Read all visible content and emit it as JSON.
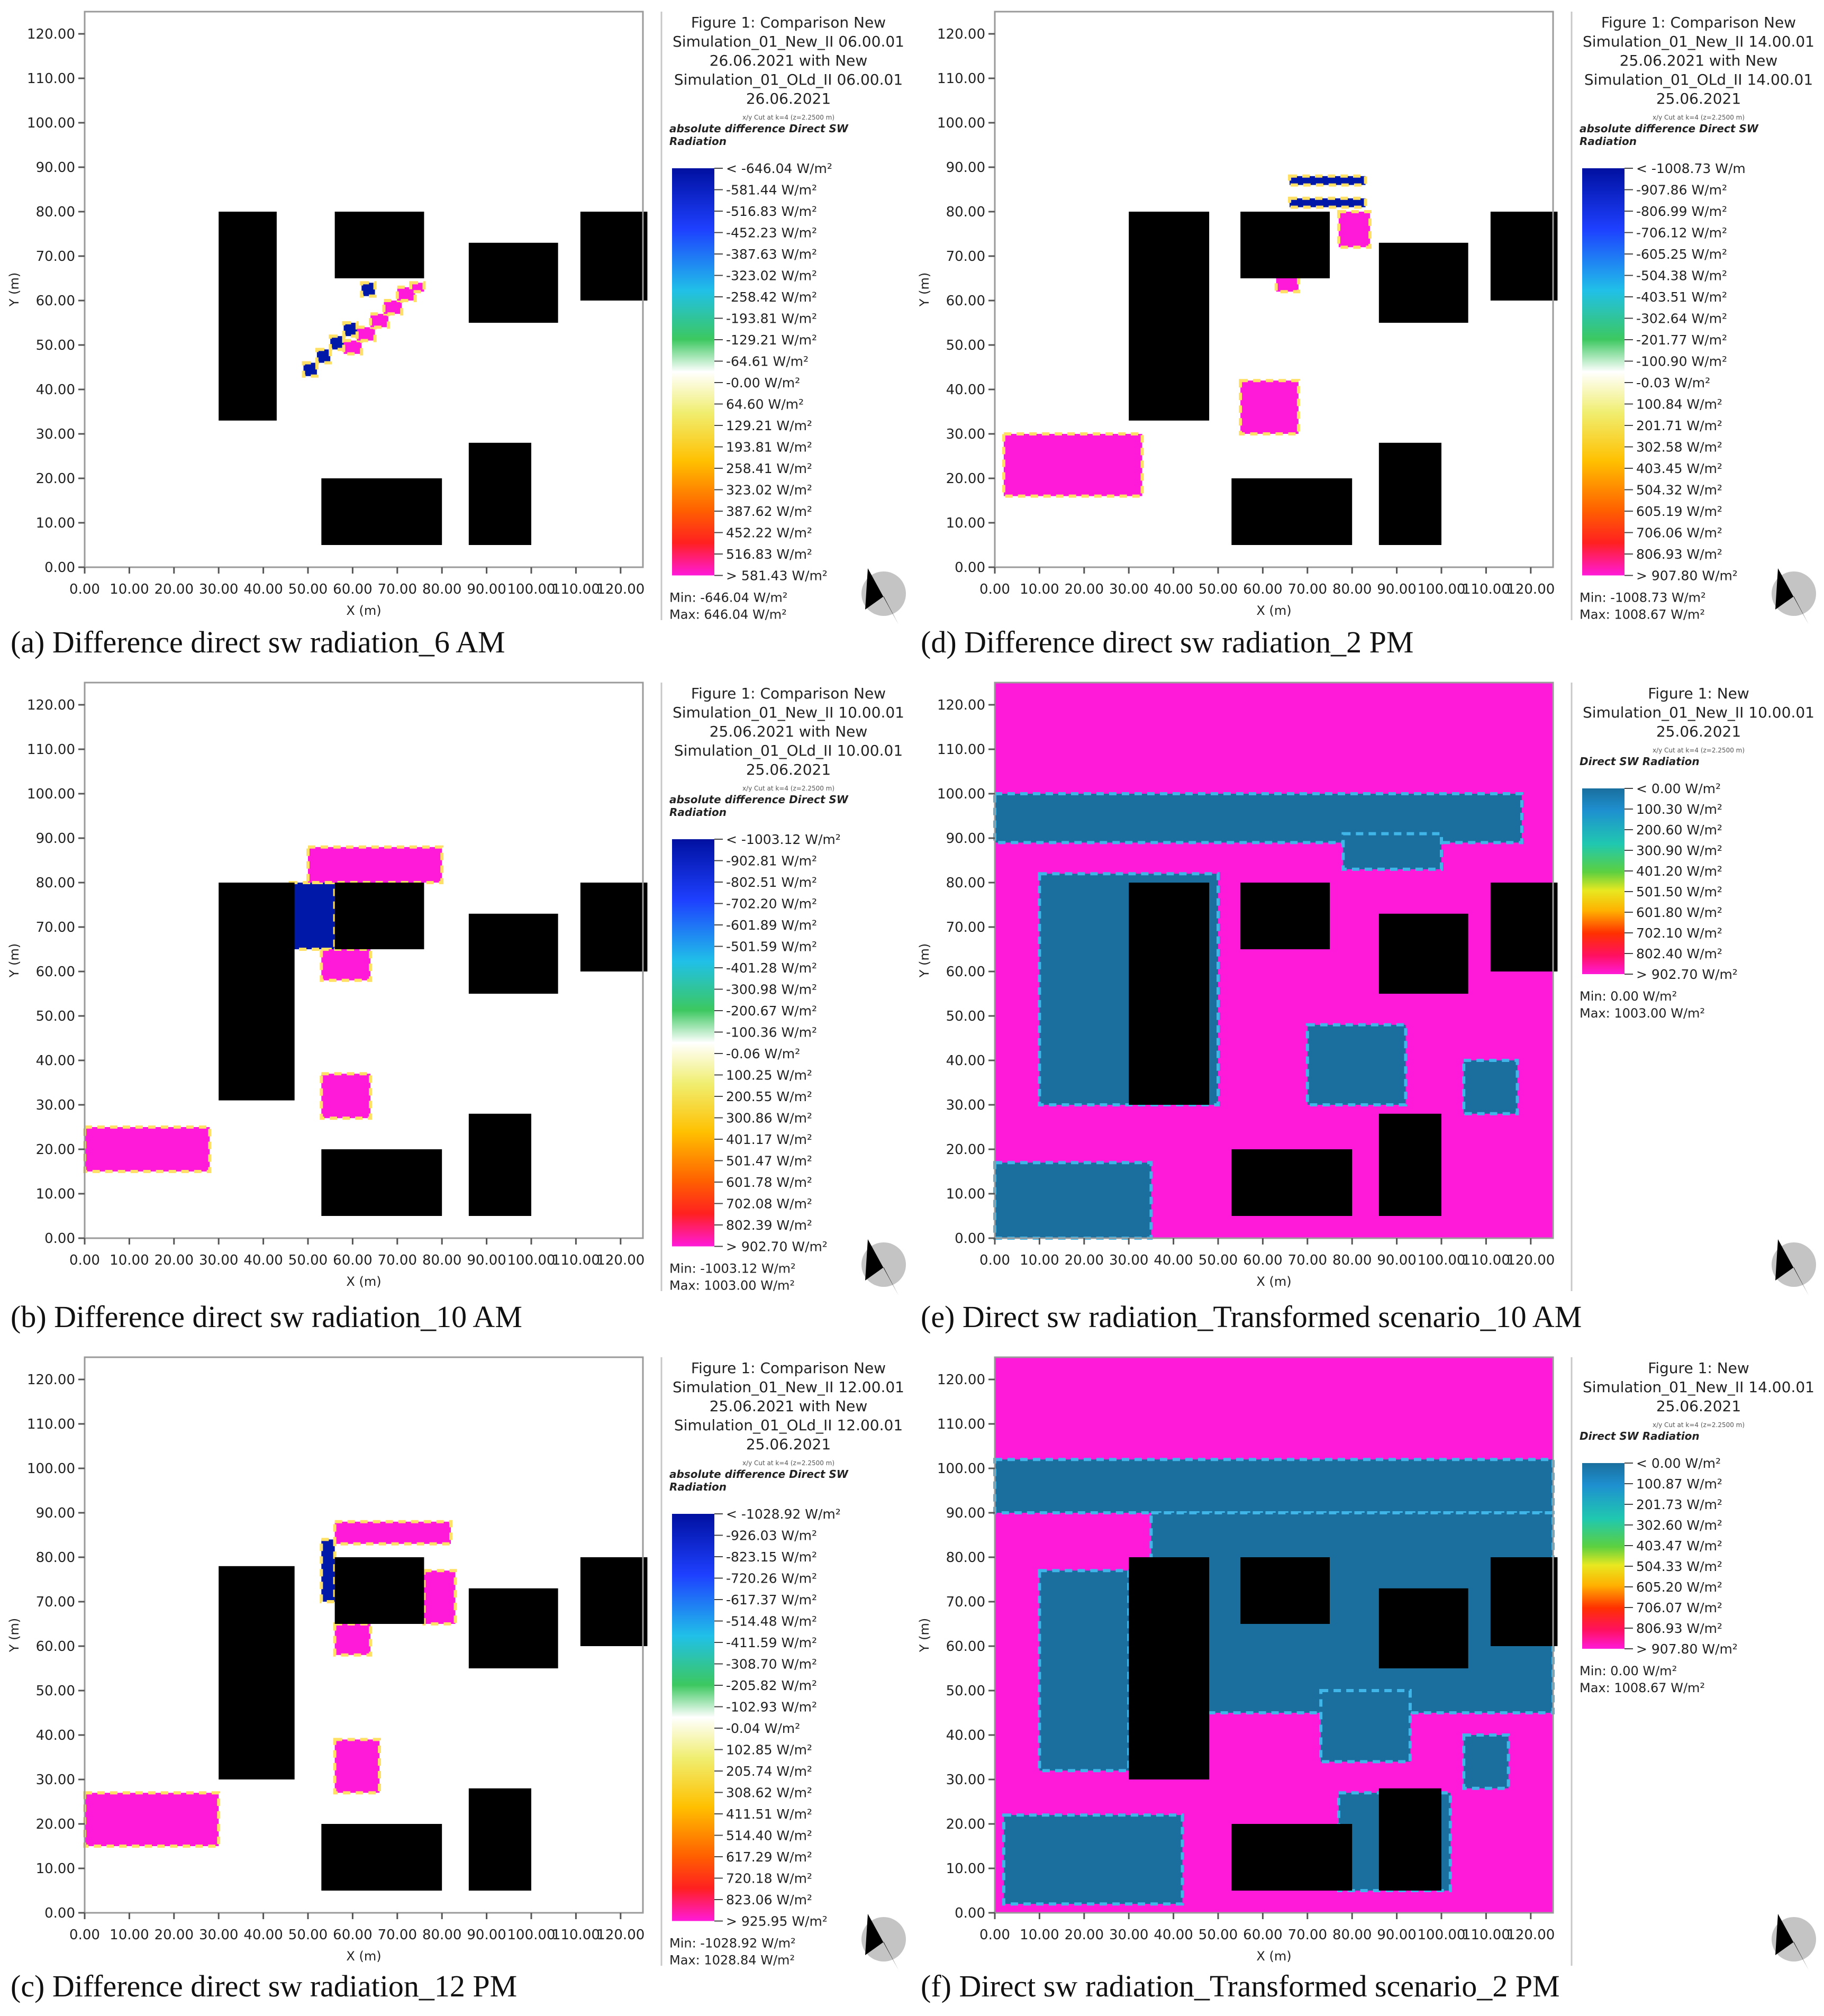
{
  "figure": {
    "ticks_x": [
      "0.00",
      "10.00",
      "20.00",
      "30.00",
      "40.00",
      "50.00",
      "60.00",
      "70.00",
      "80.00",
      "90.00",
      "100.00",
      "110.00",
      "120.00"
    ],
    "ticks_y": [
      "0.00",
      "10.00",
      "20.00",
      "30.00",
      "40.00",
      "50.00",
      "60.00",
      "70.00",
      "80.00",
      "90.00",
      "100.00",
      "110.00",
      "120.00"
    ],
    "xlabel": "X (m)",
    "ylabel": "Y (m)",
    "colors": {
      "building": "#000000",
      "magenta": "#ff1ad9",
      "teal": "#1a6f9e",
      "blue": "#0018a8",
      "white": "#ffffff"
    },
    "panels": [
      {
        "id": "a",
        "caption": "(a) Difference direct sw radiation_6 AM",
        "legend": {
          "title": [
            "Figure 1: Comparison New",
            "Simulation_01_New_II 06.00.01",
            "26.06.2021 with New",
            "Simulation_01_OLd_II 06.00.01",
            "26.06.2021"
          ],
          "cut": "x/y Cut at k=4 (z=2.2500 m)",
          "var": [
            "absolute difference Direct SW",
            "Radiation"
          ],
          "scale": "diff",
          "entries": [
            "< -646.04 W/m²",
            "-581.44  W/m²",
            "-516.83  W/m²",
            "-452.23  W/m²",
            "-387.63  W/m²",
            "-323.02  W/m²",
            "-258.42  W/m²",
            "-193.81  W/m²",
            "-129.21  W/m²",
            "-64.61  W/m²",
            "-0.00  W/m²",
            "64.60  W/m²",
            "129.21  W/m²",
            "193.81  W/m²",
            "258.41  W/m²",
            "323.02  W/m²",
            "387.62  W/m²",
            "452.22  W/m²",
            "516.83  W/m²",
            "> 581.43 W/m²"
          ],
          "min": "Min: -646.04 W/m²",
          "max": "Max: 646.04 W/m²"
        }
      },
      {
        "id": "d",
        "caption": "(d) Difference direct sw radiation_2 PM",
        "legend": {
          "title": [
            "Figure 1: Comparison New",
            "Simulation_01_New_II 14.00.01",
            "25.06.2021 with New",
            "Simulation_01_OLd_II 14.00.01",
            "25.06.2021"
          ],
          "cut": "x/y Cut at k=4 (z=2.2500 m)",
          "var": [
            "absolute difference Direct SW",
            "Radiation"
          ],
          "scale": "diff",
          "entries": [
            "< -1008.73 W/m",
            "-907.86  W/m²",
            "-806.99  W/m²",
            "-706.12  W/m²",
            "-605.25  W/m²",
            "-504.38  W/m²",
            "-403.51  W/m²",
            "-302.64  W/m²",
            "-201.77  W/m²",
            "-100.90  W/m²",
            "-0.03  W/m²",
            "100.84  W/m²",
            "201.71  W/m²",
            "302.58  W/m²",
            "403.45  W/m²",
            "504.32  W/m²",
            "605.19  W/m²",
            "706.06  W/m²",
            "806.93  W/m²",
            "> 907.80 W/m²"
          ],
          "min": "Min: -1008.73 W/m²",
          "max": "Max: 1008.67 W/m²"
        }
      },
      {
        "id": "b",
        "caption": "(b) Difference direct sw radiation_10 AM",
        "legend": {
          "title": [
            "Figure 1: Comparison New",
            "Simulation_01_New_II 10.00.01",
            "25.06.2021 with New",
            "Simulation_01_OLd_II 10.00.01",
            "25.06.2021"
          ],
          "cut": "x/y Cut at k=4 (z=2.2500 m)",
          "var": [
            "absolute difference Direct SW",
            "Radiation"
          ],
          "scale": "diff",
          "entries": [
            "< -1003.12 W/m²",
            "-902.81  W/m²",
            "-802.51  W/m²",
            "-702.20  W/m²",
            "-601.89  W/m²",
            "-501.59  W/m²",
            "-401.28  W/m²",
            "-300.98  W/m²",
            "-200.67  W/m²",
            "-100.36  W/m²",
            "-0.06  W/m²",
            "100.25  W/m²",
            "200.55  W/m²",
            "300.86  W/m²",
            "401.17  W/m²",
            "501.47  W/m²",
            "601.78  W/m²",
            "702.08  W/m²",
            "802.39  W/m²",
            "> 902.70 W/m²"
          ],
          "min": "Min: -1003.12 W/m²",
          "max": "Max: 1003.00 W/m²"
        }
      },
      {
        "id": "e",
        "caption": "(e) Direct sw radiation_Transformed scenario_10 AM",
        "legend": {
          "title": [
            "Figure 1: New",
            "Simulation_01_New_II 10.00.01",
            "25.06.2021"
          ],
          "cut": "x/y Cut at k=4 (z=2.2500 m)",
          "var": [
            "Direct SW Radiation"
          ],
          "scale": "abs",
          "entries": [
            "< 0.00 W/m²",
            "100.30  W/m²",
            "200.60  W/m²",
            "300.90  W/m²",
            "401.20  W/m²",
            "501.50  W/m²",
            "601.80  W/m²",
            "702.10  W/m²",
            "802.40  W/m²",
            "> 902.70 W/m²"
          ],
          "min": "Min: 0.00 W/m²",
          "max": "Max: 1003.00 W/m²"
        }
      },
      {
        "id": "c",
        "caption": "(c) Difference direct sw radiation_12 PM",
        "legend": {
          "title": [
            "Figure 1: Comparison New",
            "Simulation_01_New_II 12.00.01",
            "25.06.2021 with New",
            "Simulation_01_OLd_II 12.00.01",
            "25.06.2021"
          ],
          "cut": "x/y Cut at k=4 (z=2.2500 m)",
          "var": [
            "absolute difference Direct SW",
            "Radiation"
          ],
          "scale": "diff",
          "entries": [
            "< -1028.92 W/m²",
            "-926.03  W/m²",
            "-823.15  W/m²",
            "-720.26  W/m²",
            "-617.37  W/m²",
            "-514.48  W/m²",
            "-411.59  W/m²",
            "-308.70  W/m²",
            "-205.82  W/m²",
            "-102.93  W/m²",
            "-0.04  W/m²",
            "102.85  W/m²",
            "205.74  W/m²",
            "308.62  W/m²",
            "411.51  W/m²",
            "514.40  W/m²",
            "617.29  W/m²",
            "720.18  W/m²",
            "823.06  W/m²",
            "> 925.95 W/m²"
          ],
          "min": "Min: -1028.92 W/m²",
          "max": "Max: 1028.84 W/m²"
        }
      },
      {
        "id": "f",
        "caption": "(f) Direct sw radiation_Transformed scenario_2 PM",
        "legend": {
          "title": [
            "Figure 1: New",
            "Simulation_01_New_II 14.00.01",
            "25.06.2021"
          ],
          "cut": "x/y Cut at k=4 (z=2.2500 m)",
          "var": [
            "Direct SW Radiation"
          ],
          "scale": "abs",
          "entries": [
            "< 0.00 W/m²",
            "100.87  W/m²",
            "201.73  W/m²",
            "302.60  W/m²",
            "403.47  W/m²",
            "504.33  W/m²",
            "605.20  W/m²",
            "706.07  W/m²",
            "806.93  W/m²",
            "> 907.80 W/m²"
          ],
          "min": "Min: 0.00 W/m²",
          "max": "Max: 1008.67 W/m²"
        }
      }
    ]
  },
  "chart_data": [
    {
      "type": "heatmap",
      "title": "(a) Difference direct sw radiation_6 AM",
      "xlabel": "X (m)",
      "ylabel": "Y (m)",
      "xlim": [
        0,
        125
      ],
      "ylim": [
        0,
        125
      ],
      "value_range": [
        -646.04,
        646.04
      ],
      "buildings": [
        [
          30,
          33,
          13,
          47
        ],
        [
          56,
          65,
          20,
          15
        ],
        [
          86,
          55,
          20,
          18
        ],
        [
          111,
          60,
          15,
          20
        ],
        [
          53,
          5,
          27,
          15
        ],
        [
          86,
          5,
          14,
          23
        ]
      ],
      "regions": [
        {
          "label": "negative diagonal band",
          "value": -646.04,
          "cells": [
            [
              49,
              43,
              3,
              3
            ],
            [
              52,
              46,
              3,
              3
            ],
            [
              55,
              49,
              3,
              3
            ],
            [
              58,
              52,
              3,
              3
            ],
            [
              62,
              61,
              3,
              3
            ]
          ]
        },
        {
          "label": "positive diagonal band",
          "value": 581.43,
          "cells": [
            [
              58,
              48,
              4,
              3
            ],
            [
              61,
              51,
              4,
              3
            ],
            [
              64,
              54,
              4,
              3
            ],
            [
              67,
              57,
              4,
              3
            ],
            [
              70,
              60,
              4,
              3
            ],
            [
              73,
              62,
              3,
              2
            ]
          ]
        }
      ]
    },
    {
      "type": "heatmap",
      "title": "(d) Difference direct sw radiation_2 PM",
      "xlabel": "X (m)",
      "ylabel": "Y (m)",
      "xlim": [
        0,
        125
      ],
      "ylim": [
        0,
        125
      ],
      "value_range": [
        -1008.73,
        1008.67
      ],
      "buildings": [
        [
          30,
          33,
          18,
          47
        ],
        [
          55,
          65,
          20,
          15
        ],
        [
          86,
          55,
          20,
          18
        ],
        [
          111,
          60,
          15,
          20
        ],
        [
          53,
          5,
          27,
          15
        ],
        [
          86,
          5,
          14,
          23
        ]
      ],
      "regions": [
        {
          "label": "negative band north",
          "value": -1008.73,
          "cells": [
            [
              66,
              86,
              17,
              2
            ],
            [
              66,
              81,
              17,
              2
            ]
          ]
        },
        {
          "label": "positive spot north",
          "value": 907.8,
          "cells": [
            [
              77,
              72,
              7,
              8
            ],
            [
              63,
              62,
              5,
              4
            ]
          ]
        },
        {
          "label": "positive circle",
          "value": 907.8,
          "cells": [
            [
              55,
              30,
              13,
              12
            ]
          ]
        },
        {
          "label": "positive strip south-west",
          "value": 907.8,
          "cells": [
            [
              2,
              16,
              31,
              14
            ]
          ]
        }
      ]
    },
    {
      "type": "heatmap",
      "title": "(b) Difference direct sw radiation_10 AM",
      "xlabel": "X (m)",
      "ylabel": "Y (m)",
      "xlim": [
        0,
        125
      ],
      "ylim": [
        0,
        125
      ],
      "value_range": [
        -1003.12,
        1003.0
      ],
      "buildings": [
        [
          30,
          31,
          17,
          49
        ],
        [
          56,
          65,
          20,
          15
        ],
        [
          86,
          55,
          20,
          18
        ],
        [
          111,
          60,
          15,
          20
        ],
        [
          53,
          5,
          27,
          15
        ],
        [
          86,
          5,
          14,
          23
        ]
      ],
      "regions": [
        {
          "label": "negative west face",
          "value": -1003.12,
          "cells": [
            [
              46,
              65,
              10,
              15
            ]
          ]
        },
        {
          "label": "positive strip north",
          "value": 902.7,
          "cells": [
            [
              50,
              80,
              30,
              8
            ]
          ]
        },
        {
          "label": "positive spot",
          "value": 902.7,
          "cells": [
            [
              53,
              58,
              11,
              7
            ],
            [
              53,
              27,
              11,
              10
            ]
          ]
        },
        {
          "label": "positive strip south-west",
          "value": 902.7,
          "cells": [
            [
              0,
              15,
              28,
              10
            ]
          ]
        }
      ]
    },
    {
      "type": "heatmap",
      "title": "(e) Direct sw radiation_Transformed scenario_10 AM",
      "xlabel": "X (m)",
      "ylabel": "Y (m)",
      "xlim": [
        0,
        125
      ],
      "ylim": [
        0,
        125
      ],
      "value_range": [
        0,
        1003.0
      ],
      "background_value": 902.7,
      "buildings": [
        [
          30,
          30,
          18,
          50
        ],
        [
          55,
          65,
          20,
          15
        ],
        [
          86,
          55,
          20,
          18
        ],
        [
          111,
          60,
          15,
          20
        ],
        [
          53,
          5,
          27,
          15
        ],
        [
          86,
          5,
          14,
          23
        ]
      ],
      "regions": [
        {
          "label": "shaded band north",
          "value": 0,
          "cells": [
            [
              0,
              89,
              118,
              11
            ]
          ]
        },
        {
          "label": "shaded west area",
          "value": 0,
          "cells": [
            [
              10,
              30,
              40,
              52
            ]
          ]
        },
        {
          "label": "shaded south-west",
          "value": 0,
          "cells": [
            [
              0,
              0,
              35,
              17
            ]
          ]
        },
        {
          "label": "shaded islands",
          "value": 0,
          "cells": [
            [
              70,
              30,
              22,
              18
            ],
            [
              105,
              28,
              12,
              12
            ],
            [
              78,
              83,
              22,
              8
            ]
          ]
        }
      ]
    },
    {
      "type": "heatmap",
      "title": "(c) Difference direct sw radiation_12 PM",
      "xlabel": "X (m)",
      "ylabel": "Y (m)",
      "xlim": [
        0,
        125
      ],
      "ylim": [
        0,
        125
      ],
      "value_range": [
        -1028.92,
        1028.84
      ],
      "buildings": [
        [
          30,
          30,
          17,
          48
        ],
        [
          56,
          65,
          20,
          15
        ],
        [
          86,
          55,
          20,
          18
        ],
        [
          111,
          60,
          15,
          20
        ],
        [
          53,
          5,
          27,
          15
        ],
        [
          86,
          5,
          14,
          23
        ]
      ],
      "regions": [
        {
          "label": "negative west face",
          "value": -1028.92,
          "cells": [
            [
              53,
              70,
              3,
              14
            ]
          ]
        },
        {
          "label": "positive strip north",
          "value": 925.95,
          "cells": [
            [
              56,
              83,
              26,
              5
            ]
          ]
        },
        {
          "label": "positive east face",
          "value": 925.95,
          "cells": [
            [
              76,
              65,
              7,
              12
            ]
          ]
        },
        {
          "label": "positive spots",
          "value": 925.95,
          "cells": [
            [
              56,
              58,
              8,
              7
            ],
            [
              56,
              27,
              10,
              12
            ]
          ]
        },
        {
          "label": "positive strip south-west",
          "value": 925.95,
          "cells": [
            [
              0,
              15,
              30,
              12
            ]
          ]
        }
      ]
    },
    {
      "type": "heatmap",
      "title": "(f) Direct sw radiation_Transformed scenario_2 PM",
      "xlabel": "X (m)",
      "ylabel": "Y (m)",
      "xlim": [
        0,
        125
      ],
      "ylim": [
        0,
        125
      ],
      "value_range": [
        0,
        1008.67
      ],
      "background_value": 907.8,
      "buildings": [
        [
          30,
          30,
          18,
          50
        ],
        [
          55,
          65,
          20,
          15
        ],
        [
          86,
          55,
          20,
          18
        ],
        [
          111,
          60,
          15,
          20
        ],
        [
          53,
          5,
          27,
          15
        ],
        [
          86,
          5,
          14,
          23
        ]
      ],
      "regions": [
        {
          "label": "shaded band north",
          "value": 0,
          "cells": [
            [
              0,
              90,
              125,
              12
            ]
          ]
        },
        {
          "label": "shaded wedge",
          "value": 0,
          "cells": [
            [
              35,
              45,
              90,
              45
            ]
          ]
        },
        {
          "label": "shaded west blob",
          "value": 0,
          "cells": [
            [
              10,
              32,
              20,
              45
            ]
          ]
        },
        {
          "label": "shaded south-west",
          "value": 0,
          "cells": [
            [
              2,
              2,
              40,
              20
            ]
          ]
        },
        {
          "label": "shaded islands",
          "value": 0,
          "cells": [
            [
              73,
              34,
              20,
              16
            ],
            [
              105,
              28,
              10,
              12
            ],
            [
              77,
              5,
              25,
              22
            ]
          ]
        }
      ]
    }
  ]
}
